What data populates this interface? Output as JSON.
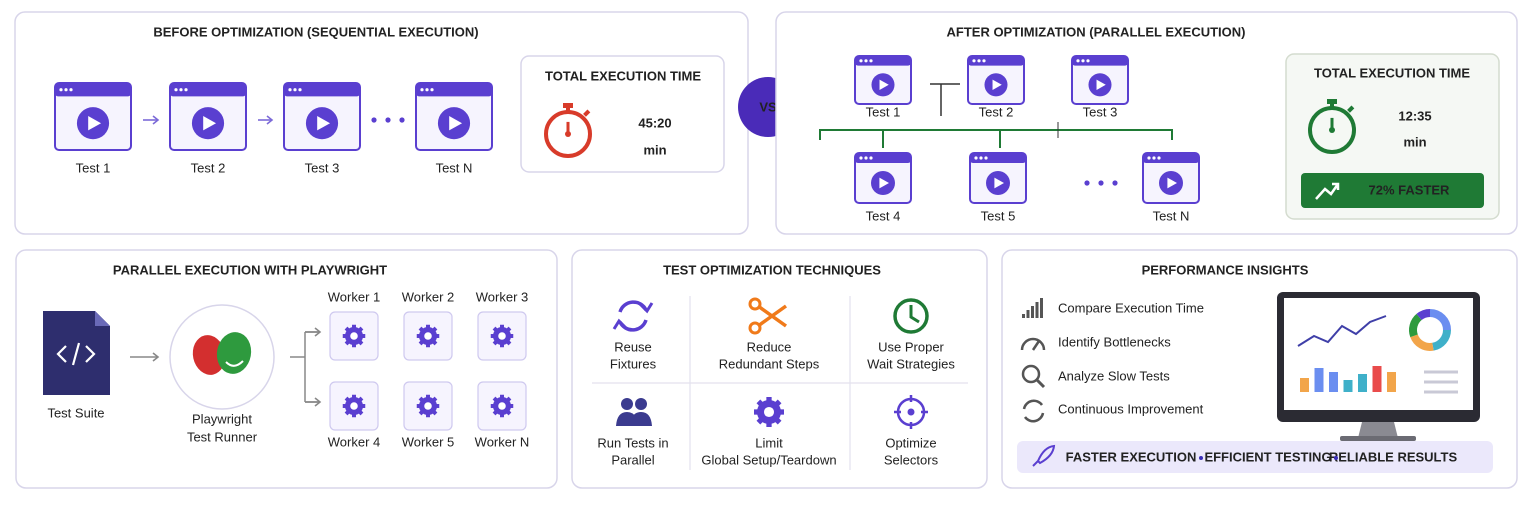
{
  "before": {
    "title": "BEFORE OPTIMIZATION (SEQUENTIAL EXECUTION)",
    "tests": [
      "Test 1",
      "Test 2",
      "Test 3",
      "Test N"
    ],
    "time_label": "TOTAL EXECUTION TIME",
    "time": "45:20",
    "unit": "min"
  },
  "vs": "VS",
  "after": {
    "title": "AFTER OPTIMIZATION (PARALLEL EXECUTION)",
    "tests": [
      "Test 1",
      "Test 2",
      "Test 3",
      "Test 4",
      "Test 5",
      "Test N"
    ],
    "time_label": "TOTAL EXECUTION TIME",
    "time": "12:35",
    "unit": "min",
    "badge": "72% FASTER"
  },
  "parallel": {
    "title": "PARALLEL EXECUTION WITH PLAYWRIGHT",
    "suite": "Test Suite",
    "runner": [
      "Playwright",
      "Test Runner"
    ],
    "workers": [
      "Worker 1",
      "Worker 2",
      "Worker 3",
      "Worker 4",
      "Worker 5",
      "Worker N"
    ]
  },
  "techniques": {
    "title": "TEST OPTIMIZATION TECHNIQUES",
    "items": [
      [
        "Reuse",
        "Fixtures"
      ],
      [
        "Reduce",
        "Redundant Steps"
      ],
      [
        "Use Proper",
        "Wait Strategies"
      ],
      [
        "Run Tests in",
        "Parallel"
      ],
      [
        "Limit",
        "Global Setup/Teardown"
      ],
      [
        "Optimize",
        "Selectors"
      ]
    ]
  },
  "insights": {
    "title": "PERFORMANCE INSIGHTS",
    "items": [
      "Compare Execution Time",
      "Identify Bottlenecks",
      "Analyze Slow Tests",
      "Continuous Improvement"
    ],
    "footer": [
      "FASTER EXECUTION",
      "EFFICIENT TESTING",
      "RELIABLE RESULTS"
    ]
  }
}
